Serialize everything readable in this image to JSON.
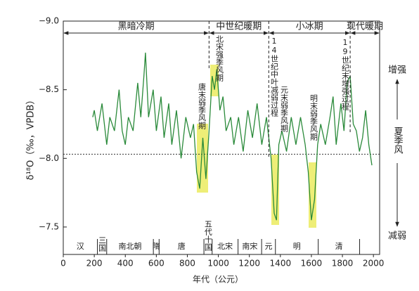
{
  "chart_data": {
    "type": "line",
    "x_label": "年代（公元）",
    "y_label": "δ¹⁸O（‰，VPDB）",
    "xlim": [
      0,
      2040
    ],
    "ylim": [
      -9.0,
      -7.3
    ],
    "y_inverted": true,
    "xticks": [
      0,
      200,
      400,
      600,
      800,
      1000,
      1200,
      1400,
      1600,
      1800,
      2000
    ],
    "yticks": [
      {
        "value": -9.0,
        "label": "−9.0"
      },
      {
        "value": -8.5,
        "label": "−8.5"
      },
      {
        "value": -8.0,
        "label": "−8.0"
      },
      {
        "value": -7.5,
        "label": "−7.5"
      }
    ],
    "reference_line": -8.03,
    "x": [
      190,
      200,
      220,
      250,
      280,
      300,
      330,
      360,
      380,
      400,
      420,
      450,
      480,
      500,
      520,
      530,
      550,
      580,
      600,
      630,
      650,
      680,
      700,
      730,
      760,
      790,
      820,
      840,
      860,
      880,
      900,
      920,
      940,
      960,
      975,
      990,
      1010,
      1030,
      1050,
      1080,
      1100,
      1130,
      1160,
      1190,
      1220,
      1250,
      1280,
      1310,
      1340,
      1360,
      1375,
      1390,
      1410,
      1440,
      1470,
      1500,
      1530,
      1560,
      1580,
      1600,
      1620,
      1640,
      1660,
      1690,
      1720,
      1740,
      1760,
      1790,
      1810,
      1830,
      1850,
      1870,
      1890,
      1910,
      1930,
      1950,
      1970,
      1990
    ],
    "series": [
      {
        "color": "#2a8a3a",
        "values": [
          -8.3,
          -8.35,
          -8.2,
          -8.4,
          -8.1,
          -8.3,
          -8.2,
          -8.5,
          -8.2,
          -8.1,
          -8.3,
          -8.2,
          -8.55,
          -8.3,
          -8.6,
          -8.77,
          -8.3,
          -8.5,
          -8.2,
          -8.45,
          -8.15,
          -8.4,
          -8.1,
          -8.35,
          -8.0,
          -8.3,
          -8.15,
          -8.25,
          -7.9,
          -7.78,
          -8.15,
          -7.85,
          -8.2,
          -8.6,
          -8.5,
          -8.65,
          -8.35,
          -8.45,
          -8.2,
          -8.3,
          -8.1,
          -8.3,
          -8.05,
          -8.35,
          -8.15,
          -8.4,
          -8.1,
          -8.3,
          -8.0,
          -7.6,
          -7.55,
          -8.1,
          -8.2,
          -8.05,
          -8.3,
          -8.1,
          -8.3,
          -8.1,
          -7.9,
          -7.55,
          -7.7,
          -8.1,
          -8.25,
          -8.1,
          -8.3,
          -8.45,
          -8.1,
          -8.4,
          -8.2,
          -8.55,
          -8.6,
          -8.25,
          -8.2,
          -8.05,
          -8.15,
          -8.35,
          -8.1,
          -7.95
        ]
      }
    ],
    "periods": [
      {
        "name": "黑暗冷期",
        "start": 0,
        "end": 940
      },
      {
        "name": "中世纪暖期",
        "start": 940,
        "end": 1325
      },
      {
        "name": "小冰期",
        "start": 1325,
        "end": 1850
      },
      {
        "name": "现代暖期",
        "start": 1850,
        "end": 2040
      }
    ],
    "dynasties": [
      {
        "name": "汉",
        "start": 0,
        "end": 220
      },
      {
        "name": "三国",
        "start": 220,
        "end": 280
      },
      {
        "name": "南北朝",
        "start": 280,
        "end": 581
      },
      {
        "name": "隋",
        "start": 581,
        "end": 618
      },
      {
        "name": "唐",
        "start": 618,
        "end": 907
      },
      {
        "name": "五代十国",
        "start": 907,
        "end": 960
      },
      {
        "name": "北宋",
        "start": 960,
        "end": 1127
      },
      {
        "name": "南宋",
        "start": 1127,
        "end": 1279
      },
      {
        "name": "元",
        "start": 1279,
        "end": 1368
      },
      {
        "name": "明",
        "start": 1368,
        "end": 1644
      },
      {
        "name": "清",
        "start": 1644,
        "end": 1911
      }
    ],
    "annotations": [
      "唐末弱季风期",
      "北宋强季风期",
      "14世纪中叶减弱过程",
      "元末弱季风期",
      "明末弱季风期",
      "19世纪末增强过程"
    ],
    "monsoon_labels": {
      "strong": "增强",
      "axis": "夏季风",
      "weak": "减弱"
    }
  }
}
